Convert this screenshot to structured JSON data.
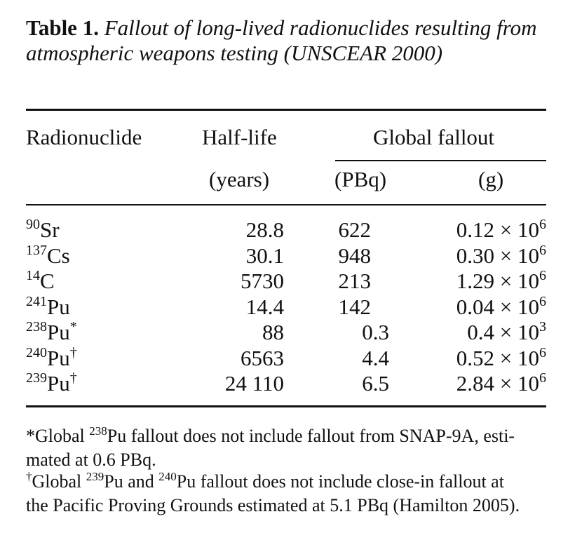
{
  "caption": {
    "label": "Table 1.",
    "title": "Fallout of long-lived radionuclides resulting from atmospheric weapons testing (UNSCEAR 2000)"
  },
  "headers": {
    "radionuclide": "Radionuclide",
    "half_life": "Half-life",
    "half_life_unit": "(years)",
    "global_fallout": "Global fallout",
    "pbq_unit": "(PBq)",
    "g_unit": "(g)"
  },
  "rows": [
    {
      "mass": "90",
      "element": "Sr",
      "mark": "",
      "half_life": "28.8",
      "pbq": "622",
      "g_mant": "0.12 × 10",
      "g_exp": "6"
    },
    {
      "mass": "137",
      "element": "Cs",
      "mark": "",
      "half_life": "30.1",
      "pbq": "948",
      "g_mant": "0.30 × 10",
      "g_exp": "6"
    },
    {
      "mass": "14",
      "element": "C",
      "mark": "",
      "half_life": "5730",
      "pbq": "213",
      "g_mant": "1.29 × 10",
      "g_exp": "6"
    },
    {
      "mass": "241",
      "element": "Pu",
      "mark": "",
      "half_life": "14.4",
      "pbq": "142",
      "g_mant": "0.04 × 10",
      "g_exp": "6"
    },
    {
      "mass": "238",
      "element": "Pu",
      "mark": "*",
      "half_life": "88",
      "pbq": "0.3",
      "g_mant": "0.4 × 10",
      "g_exp": "3"
    },
    {
      "mass": "240",
      "element": "Pu",
      "mark": "†",
      "half_life": "6563",
      "pbq": "4.4",
      "g_mant": "0.52 × 10",
      "g_exp": "6"
    },
    {
      "mass": "239",
      "element": "Pu",
      "mark": "†",
      "half_life": "24 110",
      "pbq": "6.5",
      "g_mant": "2.84 × 10",
      "g_exp": "6"
    }
  ],
  "footnotes": {
    "n1_a": "*Global ",
    "n1_sup": "238",
    "n1_b": "Pu fallout does not include fallout from SNAP-9A, esti-",
    "n1_c": "mated at 0.6 PBq.",
    "n2_mark": "†",
    "n2_a": "Global ",
    "n2_sup1": "239",
    "n2_b": "Pu and ",
    "n2_sup2": "240",
    "n2_c": "Pu fallout does not include close-in fallout at",
    "n2_d": "the Pacific Proving Grounds estimated at 5.1 PBq (Hamilton 2005)."
  }
}
